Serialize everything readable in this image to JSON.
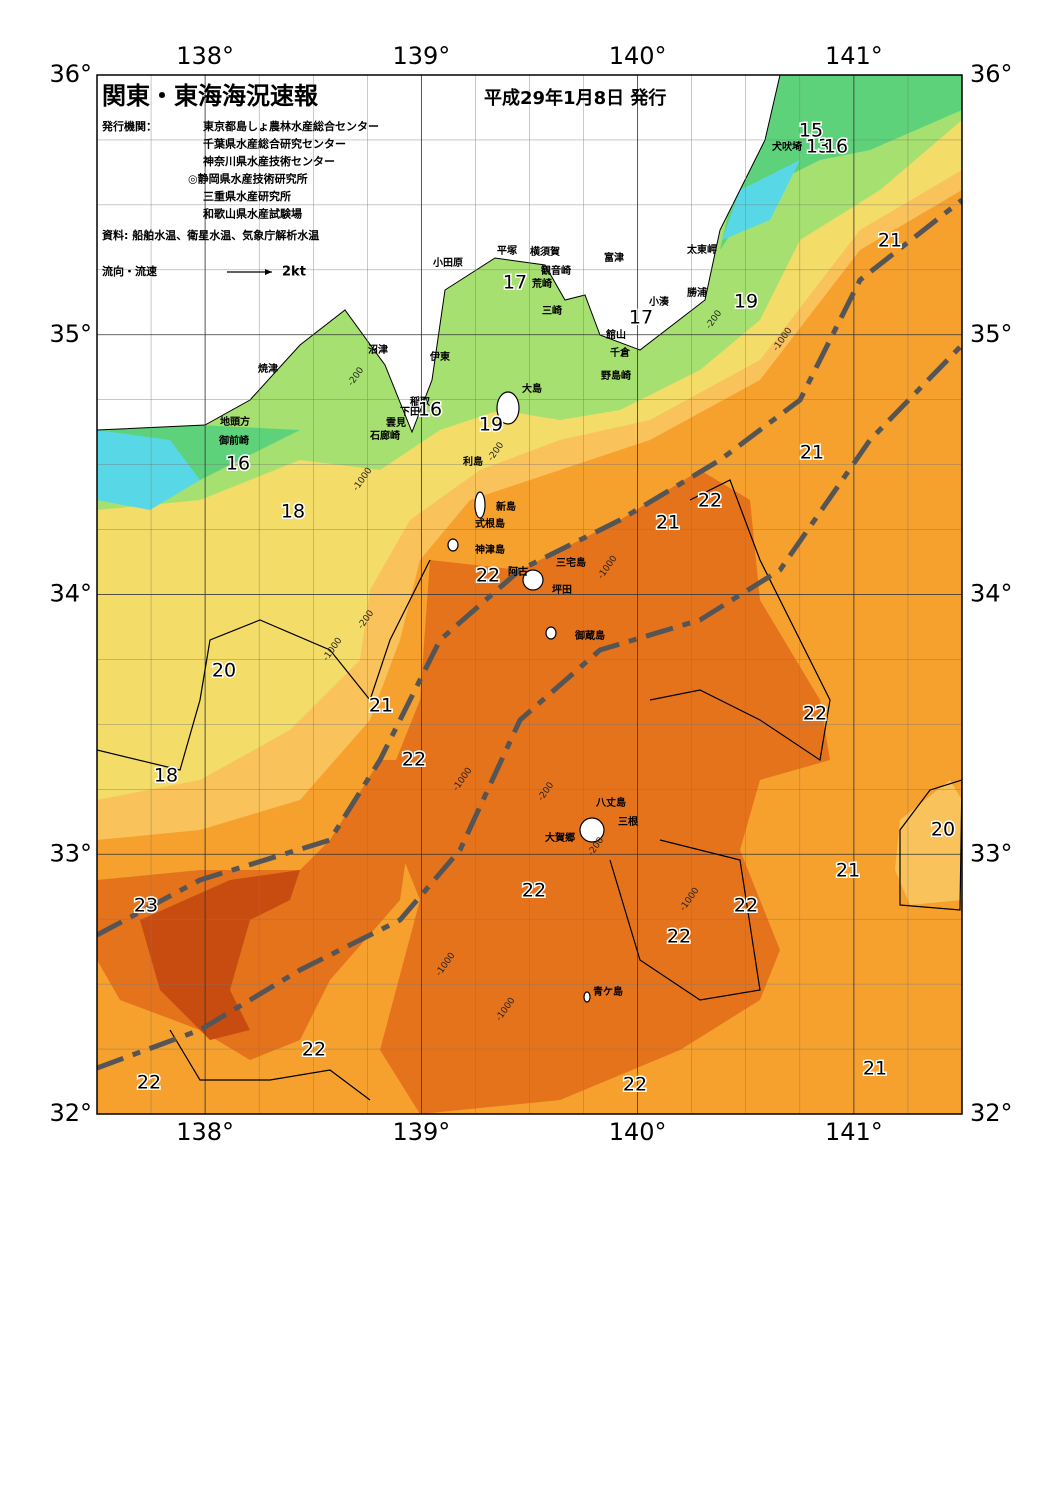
{
  "title": "関東・東海海況速報",
  "issue_date": "平成29年1月8日 発行",
  "publishers_label": "発行機関：",
  "publishers": [
    "東京都島しょ農林水産総合センター",
    "千葉県水産総合研究センター",
    "神奈川県水産技術センター",
    "◎静岡県水産技術研究所",
    "三重県水産研究所",
    "和歌山県水産試験場"
  ],
  "source": "資料: 船舶水温、衛星水温、気象庁解析水温",
  "current_legend": {
    "label": "流向・流速",
    "speed": "2kt"
  },
  "map": {
    "lon_ticks": [
      {
        "value": 138,
        "label": "138°"
      },
      {
        "value": 139,
        "label": "139°"
      },
      {
        "value": 140,
        "label": "140°"
      },
      {
        "value": 141,
        "label": "141°"
      }
    ],
    "lat_ticks": [
      {
        "value": 36,
        "label": "36°"
      },
      {
        "value": 35,
        "label": "35°"
      },
      {
        "value": 34,
        "label": "34°"
      },
      {
        "value": 33,
        "label": "33°"
      },
      {
        "value": 32,
        "label": "32°"
      }
    ],
    "place_names": [
      "犬吠埼",
      "太東岬",
      "勝浦",
      "小湊",
      "館山",
      "千倉",
      "野島崎",
      "富津",
      "横須賀",
      "観音崎",
      "平塚",
      "小田原",
      "荒崎",
      "三崎",
      "沼津",
      "伊東",
      "焼津",
      "稲取",
      "下田",
      "雲見",
      "石廊崎",
      "地頭方",
      "御前崎",
      "大島",
      "利島",
      "新島",
      "式根島",
      "神津島",
      "三宅島",
      "阿古",
      "坪田",
      "御蔵島",
      "八丈島",
      "三根",
      "大賀郷",
      "青ケ島"
    ],
    "isotherm_labels": [
      15,
      13,
      16,
      21,
      19,
      17,
      17,
      16,
      19,
      16,
      18,
      21,
      22,
      21,
      22,
      20,
      21,
      22,
      22,
      18,
      20,
      21,
      22,
      23,
      22,
      22,
      22,
      21,
      22,
      22
    ],
    "depth_labels": [
      "-200",
      "-1000",
      "-200",
      "-1000",
      "-200",
      "-1000",
      "-200",
      "-1000",
      "-1000",
      "-200",
      "-1000",
      "-1000",
      "-1000",
      "-200"
    ]
  }
}
